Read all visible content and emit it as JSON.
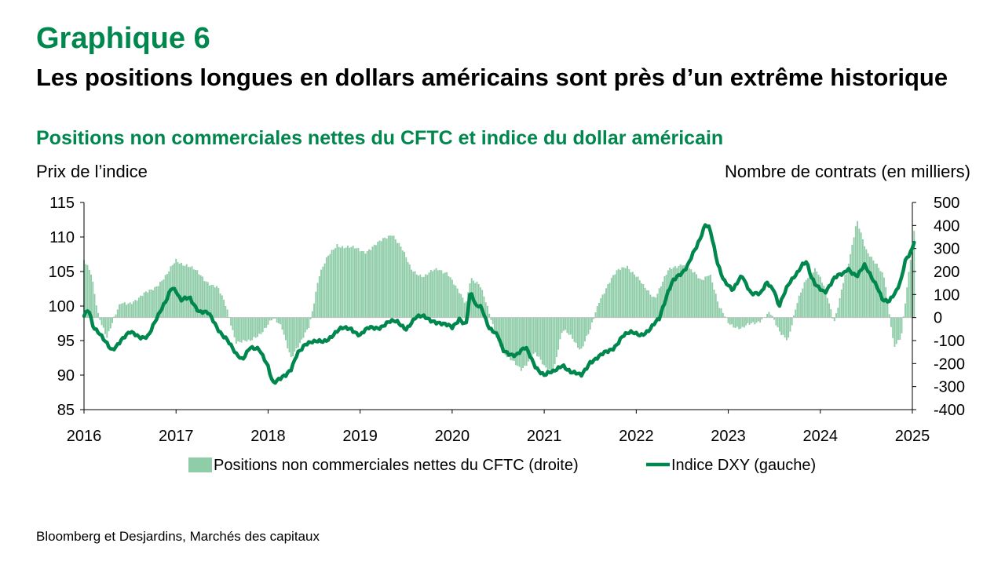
{
  "header": {
    "chart_label": "Graphique 6",
    "title": "Les positions longues en dollars américains sont près d’un extrême historique",
    "subtitle": "Positions non commerciales nettes du CFTC et indice du dollar américain"
  },
  "source": "Bloomberg et Desjardins, Marchés des capitaux",
  "colors": {
    "bars": "#8fcca8",
    "line": "#00874e",
    "title_accent": "#00874e"
  },
  "chart_data": {
    "type": "bar+line",
    "title": "Les positions longues en dollars américains sont près d’un extrême historique",
    "y_left": {
      "label": "Prix de l’indice",
      "range": [
        85,
        115
      ],
      "ticks": [
        85,
        90,
        95,
        100,
        105,
        110,
        115
      ]
    },
    "y_right": {
      "label": "Nombre de contrats (en milliers)",
      "range": [
        -400,
        500
      ],
      "ticks": [
        -400,
        -300,
        -200,
        -100,
        0,
        100,
        200,
        300,
        400,
        500
      ]
    },
    "x": {
      "range": [
        2016,
        2025
      ],
      "ticks": [
        "2016",
        "2017",
        "2018",
        "2019",
        "2020",
        "2021",
        "2022",
        "2023",
        "2024",
        "2025"
      ]
    },
    "legend_position": "bottom",
    "series": [
      {
        "name": "Positions non commerciales nettes du CFTC (droite)",
        "type": "bar",
        "axis": "right",
        "anchors": [
          [
            2016.0,
            250
          ],
          [
            2016.08,
            180
          ],
          [
            2016.15,
            20
          ],
          [
            2016.25,
            -80
          ],
          [
            2016.4,
            60
          ],
          [
            2016.6,
            80
          ],
          [
            2016.75,
            130
          ],
          [
            2016.9,
            180
          ],
          [
            2017.0,
            250
          ],
          [
            2017.12,
            230
          ],
          [
            2017.3,
            170
          ],
          [
            2017.45,
            130
          ],
          [
            2017.55,
            40
          ],
          [
            2017.65,
            -100
          ],
          [
            2017.8,
            -110
          ],
          [
            2017.95,
            -50
          ],
          [
            2018.05,
            -10
          ],
          [
            2018.15,
            -40
          ],
          [
            2018.25,
            -170
          ],
          [
            2018.35,
            -120
          ],
          [
            2018.45,
            -30
          ],
          [
            2018.55,
            180
          ],
          [
            2018.65,
            260
          ],
          [
            2018.75,
            320
          ],
          [
            2018.9,
            300
          ],
          [
            2019.05,
            290
          ],
          [
            2019.2,
            320
          ],
          [
            2019.35,
            370
          ],
          [
            2019.45,
            300
          ],
          [
            2019.55,
            210
          ],
          [
            2019.7,
            180
          ],
          [
            2019.85,
            210
          ],
          [
            2019.95,
            200
          ],
          [
            2020.05,
            120
          ],
          [
            2020.15,
            60
          ],
          [
            2020.2,
            180
          ],
          [
            2020.3,
            140
          ],
          [
            2020.4,
            20
          ],
          [
            2020.5,
            -100
          ],
          [
            2020.6,
            -180
          ],
          [
            2020.75,
            -220
          ],
          [
            2020.9,
            -160
          ],
          [
            2021.0,
            -210
          ],
          [
            2021.1,
            -230
          ],
          [
            2021.2,
            -60
          ],
          [
            2021.3,
            -80
          ],
          [
            2021.4,
            -140
          ],
          [
            2021.5,
            -60
          ],
          [
            2021.6,
            80
          ],
          [
            2021.7,
            150
          ],
          [
            2021.8,
            200
          ],
          [
            2021.9,
            230
          ],
          [
            2022.0,
            180
          ],
          [
            2022.08,
            130
          ],
          [
            2022.2,
            90
          ],
          [
            2022.35,
            200
          ],
          [
            2022.5,
            240
          ],
          [
            2022.6,
            200
          ],
          [
            2022.7,
            160
          ],
          [
            2022.8,
            200
          ],
          [
            2022.9,
            40
          ],
          [
            2023.0,
            -20
          ],
          [
            2023.15,
            -50
          ],
          [
            2023.3,
            -20
          ],
          [
            2023.45,
            20
          ],
          [
            2023.55,
            -60
          ],
          [
            2023.65,
            -90
          ],
          [
            2023.75,
            60
          ],
          [
            2023.85,
            170
          ],
          [
            2023.95,
            220
          ],
          [
            2024.05,
            120
          ],
          [
            2024.15,
            -20
          ],
          [
            2024.25,
            160
          ],
          [
            2024.32,
            250
          ],
          [
            2024.4,
            420
          ],
          [
            2024.5,
            300
          ],
          [
            2024.6,
            230
          ],
          [
            2024.7,
            170
          ],
          [
            2024.8,
            -120
          ],
          [
            2024.88,
            -90
          ],
          [
            2024.95,
            150
          ],
          [
            2025.0,
            320
          ],
          [
            2025.02,
            380
          ]
        ]
      },
      {
        "name": "Indice DXY (gauche)",
        "type": "line",
        "axis": "left",
        "anchors": [
          [
            2016.0,
            98.6
          ],
          [
            2016.05,
            99.8
          ],
          [
            2016.1,
            97.2
          ],
          [
            2016.15,
            96.3
          ],
          [
            2016.22,
            94.8
          ],
          [
            2016.3,
            93.6
          ],
          [
            2016.4,
            95.2
          ],
          [
            2016.5,
            96.0
          ],
          [
            2016.6,
            95.6
          ],
          [
            2016.7,
            95.8
          ],
          [
            2016.8,
            98.2
          ],
          [
            2016.9,
            101.2
          ],
          [
            2016.95,
            103.0
          ],
          [
            2017.0,
            102.2
          ],
          [
            2017.05,
            100.6
          ],
          [
            2017.15,
            101.2
          ],
          [
            2017.25,
            99.4
          ],
          [
            2017.35,
            98.8
          ],
          [
            2017.45,
            96.8
          ],
          [
            2017.55,
            95.4
          ],
          [
            2017.65,
            92.8
          ],
          [
            2017.72,
            92.2
          ],
          [
            2017.8,
            94.3
          ],
          [
            2017.9,
            93.6
          ],
          [
            2017.95,
            92.3
          ],
          [
            2018.0,
            91.2
          ],
          [
            2018.05,
            89.1
          ],
          [
            2018.12,
            89.6
          ],
          [
            2018.2,
            89.8
          ],
          [
            2018.25,
            90.6
          ],
          [
            2018.32,
            93.4
          ],
          [
            2018.4,
            94.6
          ],
          [
            2018.5,
            94.6
          ],
          [
            2018.6,
            95.0
          ],
          [
            2018.7,
            95.8
          ],
          [
            2018.8,
            96.6
          ],
          [
            2018.9,
            96.9
          ],
          [
            2019.0,
            95.8
          ],
          [
            2019.1,
            96.7
          ],
          [
            2019.2,
            97.0
          ],
          [
            2019.3,
            97.6
          ],
          [
            2019.4,
            97.6
          ],
          [
            2019.5,
            96.9
          ],
          [
            2019.6,
            98.2
          ],
          [
            2019.7,
            98.4
          ],
          [
            2019.8,
            98.0
          ],
          [
            2019.9,
            97.2
          ],
          [
            2020.0,
            96.9
          ],
          [
            2020.08,
            98.4
          ],
          [
            2020.15,
            97.2
          ],
          [
            2020.2,
            102.0
          ],
          [
            2020.25,
            100.0
          ],
          [
            2020.32,
            100.0
          ],
          [
            2020.4,
            97.0
          ],
          [
            2020.5,
            95.4
          ],
          [
            2020.55,
            93.5
          ],
          [
            2020.7,
            93.0
          ],
          [
            2020.8,
            93.8
          ],
          [
            2020.9,
            91.5
          ],
          [
            2021.0,
            90.0
          ],
          [
            2021.1,
            90.3
          ],
          [
            2021.2,
            91.7
          ],
          [
            2021.3,
            90.3
          ],
          [
            2021.4,
            89.8
          ],
          [
            2021.5,
            92.1
          ],
          [
            2021.6,
            92.6
          ],
          [
            2021.7,
            93.4
          ],
          [
            2021.75,
            94.0
          ],
          [
            2021.85,
            95.7
          ],
          [
            2021.95,
            96.0
          ],
          [
            2022.05,
            96.0
          ],
          [
            2022.15,
            96.6
          ],
          [
            2022.25,
            98.0
          ],
          [
            2022.35,
            102.5
          ],
          [
            2022.4,
            103.9
          ],
          [
            2022.5,
            104.5
          ],
          [
            2022.55,
            105.5
          ],
          [
            2022.62,
            108.0
          ],
          [
            2022.7,
            110.0
          ],
          [
            2022.75,
            111.6
          ],
          [
            2022.8,
            111.0
          ],
          [
            2022.88,
            106.5
          ],
          [
            2022.95,
            104.0
          ],
          [
            2023.05,
            102.0
          ],
          [
            2023.15,
            104.5
          ],
          [
            2023.25,
            102.0
          ],
          [
            2023.35,
            101.5
          ],
          [
            2023.42,
            103.4
          ],
          [
            2023.5,
            102.5
          ],
          [
            2023.55,
            100.0
          ],
          [
            2023.65,
            102.8
          ],
          [
            2023.75,
            105.0
          ],
          [
            2023.8,
            106.2
          ],
          [
            2023.85,
            106.5
          ],
          [
            2023.9,
            104.0
          ],
          [
            2023.95,
            102.8
          ],
          [
            2024.05,
            102.2
          ],
          [
            2024.15,
            104.0
          ],
          [
            2024.25,
            104.5
          ],
          [
            2024.3,
            105.5
          ],
          [
            2024.4,
            104.5
          ],
          [
            2024.48,
            105.7
          ],
          [
            2024.55,
            104.2
          ],
          [
            2024.62,
            103.0
          ],
          [
            2024.68,
            101.0
          ],
          [
            2024.75,
            100.5
          ],
          [
            2024.82,
            101.8
          ],
          [
            2024.88,
            104.0
          ],
          [
            2024.92,
            106.8
          ],
          [
            2024.96,
            107.5
          ],
          [
            2025.0,
            108.3
          ],
          [
            2025.02,
            109.3
          ]
        ]
      }
    ]
  }
}
